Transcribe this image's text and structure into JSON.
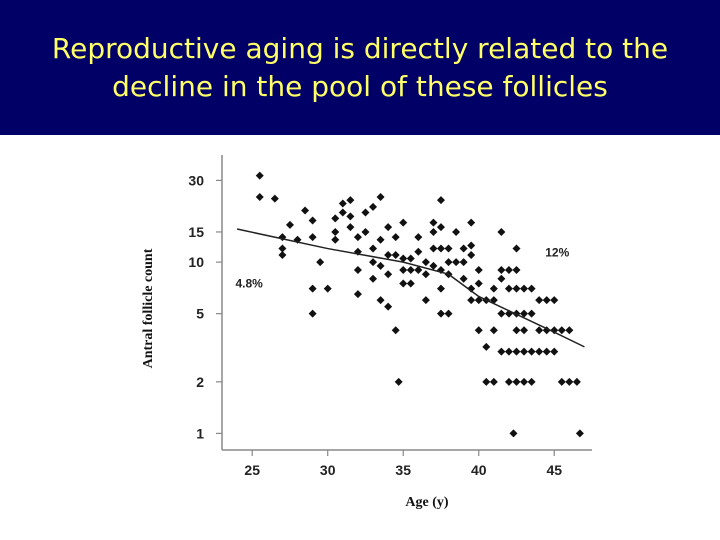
{
  "slide": {
    "title_line1": "Reproductive aging is directly related to the",
    "title_line2": "decline in the pool of these follicles",
    "colors": {
      "title_background": "#000066",
      "title_text": "#ffff66",
      "marker": "#111111"
    }
  },
  "chart_data": {
    "type": "scatter",
    "title": "",
    "xlabel": "Age (y)",
    "ylabel": "Antral follicle count",
    "xlim": [
      23,
      47.5
    ],
    "ylim": [
      0.8,
      40
    ],
    "yscale": "log",
    "xticks": [
      "25",
      "30",
      "35",
      "40",
      "45"
    ],
    "yticks": [
      "1",
      "2",
      "5",
      "10",
      "15",
      "30"
    ],
    "grid": false,
    "annotations": [
      {
        "text": "4.8%",
        "x": 24.8,
        "y": 7.5
      },
      {
        "text": "12%",
        "x": 45.2,
        "y": 11.4
      }
    ],
    "points": [
      [
        25.5,
        32
      ],
      [
        25.5,
        24
      ],
      [
        26.5,
        23.5
      ],
      [
        27,
        14
      ],
      [
        27,
        12
      ],
      [
        27,
        11
      ],
      [
        28,
        13.5
      ],
      [
        27.5,
        16.5
      ],
      [
        28.5,
        20
      ],
      [
        29,
        17.5
      ],
      [
        29,
        14
      ],
      [
        29.5,
        10
      ],
      [
        29,
        7
      ],
      [
        29,
        5
      ],
      [
        30,
        7
      ],
      [
        30.5,
        18
      ],
      [
        30.5,
        15
      ],
      [
        30.5,
        13.5
      ],
      [
        31,
        22
      ],
      [
        31,
        19.5
      ],
      [
        31.5,
        23
      ],
      [
        31.5,
        18.5
      ],
      [
        31.5,
        16
      ],
      [
        32,
        14
      ],
      [
        32,
        11.5
      ],
      [
        32,
        9
      ],
      [
        32,
        6.5
      ],
      [
        32.5,
        19.5
      ],
      [
        32.5,
        15
      ],
      [
        33,
        21
      ],
      [
        33,
        12
      ],
      [
        33,
        10
      ],
      [
        33,
        8
      ],
      [
        33.5,
        24
      ],
      [
        33.5,
        13.5
      ],
      [
        33.5,
        9.5
      ],
      [
        33.5,
        6
      ],
      [
        34,
        16
      ],
      [
        34,
        11
      ],
      [
        34,
        8.5
      ],
      [
        34,
        5.5
      ],
      [
        34.5,
        14
      ],
      [
        34.5,
        11
      ],
      [
        34.5,
        4
      ],
      [
        34.7,
        2
      ],
      [
        35,
        17
      ],
      [
        35,
        10.5
      ],
      [
        35,
        9
      ],
      [
        35,
        7.5
      ],
      [
        35.5,
        10.5
      ],
      [
        35.5,
        9
      ],
      [
        35.5,
        7.5
      ],
      [
        36,
        14
      ],
      [
        36,
        11.5
      ],
      [
        36,
        9
      ],
      [
        36.5,
        6
      ],
      [
        36.5,
        8.5
      ],
      [
        36.5,
        10
      ],
      [
        37,
        17
      ],
      [
        37,
        15
      ],
      [
        37,
        12
      ],
      [
        37,
        9.5
      ],
      [
        37.5,
        23
      ],
      [
        37.5,
        16
      ],
      [
        37.5,
        12
      ],
      [
        37.5,
        9
      ],
      [
        37.5,
        7
      ],
      [
        37.5,
        5
      ],
      [
        38,
        12
      ],
      [
        38,
        10
      ],
      [
        38,
        8.5
      ],
      [
        38,
        5
      ],
      [
        38.5,
        15
      ],
      [
        38.5,
        10
      ],
      [
        39,
        12
      ],
      [
        39,
        10
      ],
      [
        39,
        8
      ],
      [
        39.5,
        17
      ],
      [
        39.5,
        12.5
      ],
      [
        39.5,
        11
      ],
      [
        39.5,
        7
      ],
      [
        39.5,
        6
      ],
      [
        40,
        9
      ],
      [
        40,
        7.5
      ],
      [
        40,
        6
      ],
      [
        40,
        4
      ],
      [
        40.5,
        6
      ],
      [
        40.5,
        3.2
      ],
      [
        40.5,
        2
      ],
      [
        41,
        7
      ],
      [
        41,
        6
      ],
      [
        41,
        4
      ],
      [
        41,
        2
      ],
      [
        41.5,
        15
      ],
      [
        41.5,
        9
      ],
      [
        41.5,
        8
      ],
      [
        41.5,
        5
      ],
      [
        41.5,
        3
      ],
      [
        42,
        9
      ],
      [
        42,
        7
      ],
      [
        42,
        5
      ],
      [
        42,
        3
      ],
      [
        42,
        2
      ],
      [
        42.5,
        12
      ],
      [
        42.5,
        9
      ],
      [
        42.5,
        7
      ],
      [
        42.5,
        5
      ],
      [
        42.5,
        4
      ],
      [
        42.5,
        3
      ],
      [
        42.5,
        2
      ],
      [
        42.3,
        1
      ],
      [
        43,
        7
      ],
      [
        43,
        5
      ],
      [
        43,
        4
      ],
      [
        43,
        3
      ],
      [
        43,
        2
      ],
      [
        43.5,
        7
      ],
      [
        43.5,
        5
      ],
      [
        43.5,
        3
      ],
      [
        43.5,
        2
      ],
      [
        44,
        6
      ],
      [
        44,
        4
      ],
      [
        44,
        3
      ],
      [
        44.5,
        6
      ],
      [
        44.5,
        4
      ],
      [
        44.5,
        3
      ],
      [
        45,
        6
      ],
      [
        45,
        4
      ],
      [
        45,
        3
      ],
      [
        45.5,
        4
      ],
      [
        45.5,
        2
      ],
      [
        46,
        4
      ],
      [
        46,
        2
      ],
      [
        46.5,
        2
      ],
      [
        46.7,
        1
      ]
    ],
    "series": [
      {
        "type": "fit_line",
        "points": [
          [
            24,
            15.6
          ],
          [
            30,
            12
          ],
          [
            35,
            10
          ],
          [
            38,
            8.5
          ],
          [
            40,
            6.3
          ],
          [
            45,
            3.9
          ],
          [
            47,
            3.2
          ]
        ]
      }
    ]
  }
}
